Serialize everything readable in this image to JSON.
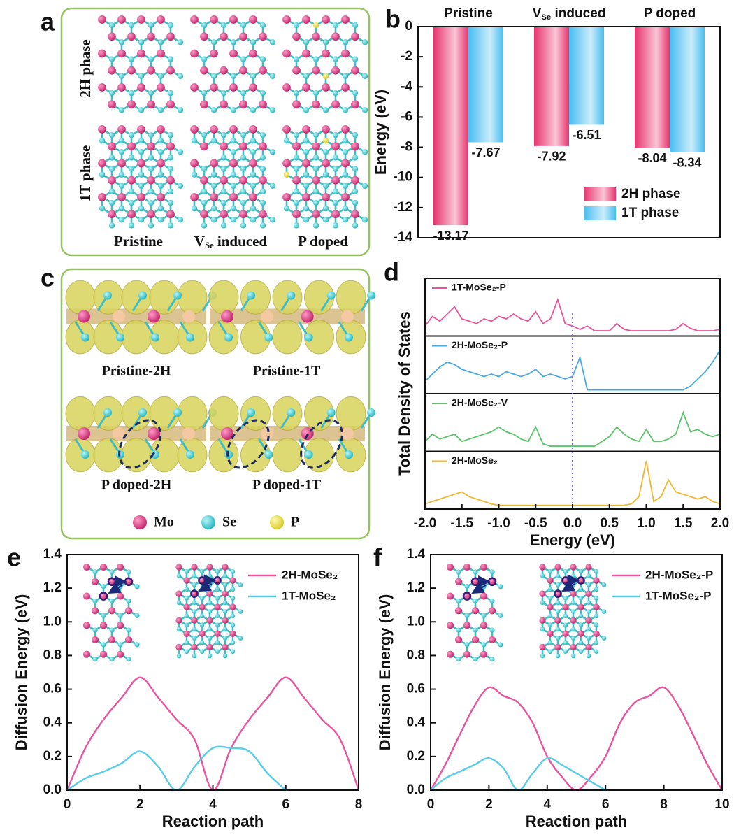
{
  "panels": {
    "a": {
      "label": "a",
      "rows": [
        "2H phase",
        "1T phase"
      ],
      "columns": [
        "Pristine",
        {
          "main": "V",
          "sub": "Se",
          "rest": " induced"
        },
        "P doped"
      ]
    },
    "c": {
      "label": "c",
      "captions": [
        "Pristine-2H",
        "Pristine-1T",
        "P doped-2H",
        "P doped-1T"
      ],
      "legend": [
        "Mo",
        "Se",
        "P"
      ]
    }
  },
  "chart_data": [
    {
      "panel": "b",
      "type": "bar",
      "ylabel": "Energy (eV)",
      "categories": [
        "Pristine",
        {
          "main": "V",
          "sub": "Se",
          "rest": " induced"
        },
        "P doped"
      ],
      "series": [
        {
          "name": "2H phase",
          "color": "#e8336e",
          "values": [
            -13.17,
            -7.92,
            -8.04
          ]
        },
        {
          "name": "1T phase",
          "color": "#47bdf0",
          "values": [
            -7.67,
            -6.51,
            -8.34
          ]
        }
      ],
      "ylim": [
        -14,
        0
      ],
      "yticks": [
        0,
        -2,
        -4,
        -6,
        -8,
        -10,
        -12,
        -14
      ],
      "legend": "lower right"
    },
    {
      "panel": "d",
      "type": "line",
      "layout": "stacked",
      "ylabel": "Total Density of States",
      "xlabel": "Energy (eV)",
      "x": [
        -2,
        -1.9,
        -1.8,
        -1.7,
        -1.6,
        -1.5,
        -1.4,
        -1.3,
        -1.2,
        -1.1,
        -1,
        -0.9,
        -0.8,
        -0.7,
        -0.6,
        -0.5,
        -0.4,
        -0.3,
        -0.2,
        -0.1,
        0,
        0.1,
        0.2,
        0.3,
        0.4,
        0.5,
        0.6,
        0.7,
        0.8,
        0.9,
        1,
        1.1,
        1.2,
        1.3,
        1.4,
        1.5,
        1.6,
        1.7,
        1.8,
        1.9,
        2
      ],
      "xlim": [
        -2,
        2
      ],
      "xticks": [
        {
          "value": -2,
          "label": "-2.0"
        },
        -1.5,
        {
          "value": -1,
          "label": "-1.0"
        },
        -0.5,
        {
          "value": 0,
          "label": "0.0"
        },
        0.5,
        {
          "value": 1,
          "label": "1.0"
        },
        1.5,
        {
          "value": 2,
          "label": "2.0"
        }
      ],
      "ylim": [
        0,
        1
      ],
      "reference_x": 0,
      "series": [
        {
          "name": "1T-MoSe₂-P",
          "color": "#e8549c",
          "values": [
            0.15,
            0.35,
            0.25,
            0.4,
            0.55,
            0.3,
            0.25,
            0.2,
            0.3,
            0.25,
            0.35,
            0.3,
            0.4,
            0.3,
            0.25,
            0.45,
            0.2,
            0.3,
            0.7,
            0.2,
            0.15,
            0.08,
            0.15,
            0.05,
            0.05,
            0.05,
            0.2,
            0.08,
            0.05,
            0.05,
            0.05,
            0.05,
            0.05,
            0.05,
            0.08,
            0.2,
            0.1,
            0.05,
            0.05,
            0.05,
            0.08
          ]
        },
        {
          "name": "2H-MoSe₂-P",
          "color": "#4aa8e0",
          "values": [
            0.2,
            0.35,
            0.5,
            0.6,
            0.55,
            0.45,
            0.4,
            0.35,
            0.3,
            0.35,
            0.3,
            0.4,
            0.35,
            0.3,
            0.35,
            0.45,
            0.3,
            0.35,
            0.3,
            0.25,
            0.3,
            0.7,
            0.02,
            0.02,
            0.02,
            0.02,
            0.02,
            0.02,
            0.02,
            0.02,
            0.02,
            0.02,
            0.02,
            0.02,
            0.02,
            0.02,
            0.1,
            0.25,
            0.4,
            0.6,
            0.85
          ]
        },
        {
          "name": "2H-MoSe₂-V",
          "color": "#5cc46a",
          "values": [
            0.15,
            0.3,
            0.2,
            0.25,
            0.3,
            0.15,
            0.2,
            0.25,
            0.3,
            0.35,
            0.45,
            0.35,
            0.3,
            0.2,
            0.15,
            0.45,
            0.1,
            0.05,
            0.05,
            0.05,
            0.05,
            0.05,
            0.05,
            0.05,
            0.15,
            0.25,
            0.45,
            0.3,
            0.2,
            0.15,
            0.4,
            0.15,
            0.15,
            0.2,
            0.3,
            0.75,
            0.35,
            0.4,
            0.3,
            0.25,
            0.3
          ]
        },
        {
          "name": "2H-MoSe₂",
          "color": "#f2b632",
          "values": [
            0.05,
            0.1,
            0.15,
            0.2,
            0.25,
            0.3,
            0.2,
            0.15,
            0.1,
            0.05,
            0.02,
            0.02,
            0.02,
            0.02,
            0.02,
            0.02,
            0.02,
            0.02,
            0.02,
            0.02,
            0.02,
            0.02,
            0.02,
            0.02,
            0.02,
            0.02,
            0.02,
            0.02,
            0.05,
            0.2,
            0.95,
            0.1,
            0.2,
            0.55,
            0.3,
            0.25,
            0.2,
            0.15,
            0.2,
            0.1,
            0.05
          ]
        }
      ]
    },
    {
      "panel": "e",
      "type": "line",
      "xlabel": "Reaction path",
      "ylabel": "Diffusion Energy (eV)",
      "xlim": [
        0,
        8
      ],
      "xticks": [
        0,
        2,
        4,
        6,
        8
      ],
      "ylim": [
        0,
        1.4
      ],
      "yticks": [
        {
          "value": 0,
          "label": "0.0"
        },
        0.2,
        0.4,
        0.6,
        0.8,
        {
          "value": 1,
          "label": "1.0"
        },
        1.2,
        1.4
      ],
      "legend": "upper right",
      "series": [
        {
          "name": "2H-MoSe₂",
          "color": "#e9559f",
          "x": [
            0,
            0.5,
            1,
            1.5,
            2,
            2.5,
            3,
            3.5,
            4,
            4.5,
            5,
            5.5,
            6,
            6.5,
            7,
            7.5,
            8
          ],
          "values": [
            0,
            0.25,
            0.42,
            0.55,
            0.67,
            0.55,
            0.42,
            0.3,
            0,
            0.25,
            0.42,
            0.55,
            0.67,
            0.55,
            0.42,
            0.3,
            0
          ]
        },
        {
          "name": "1T-MoSe₂",
          "color": "#58cce8",
          "x": [
            0,
            0.5,
            1,
            1.5,
            2,
            2.5,
            3,
            3.5,
            4,
            4.5,
            5,
            5.5,
            6
          ],
          "values": [
            0,
            0.07,
            0.11,
            0.16,
            0.23,
            0.14,
            0,
            0.14,
            0.25,
            0.25,
            0.23,
            0.1,
            0
          ]
        }
      ]
    },
    {
      "panel": "f",
      "type": "line",
      "xlabel": "Reaction path",
      "ylabel": "Diffusion Energy (eV)",
      "xlim": [
        0,
        10
      ],
      "xticks": [
        0,
        2,
        4,
        6,
        8,
        10
      ],
      "ylim": [
        0,
        1.4
      ],
      "yticks": [
        {
          "value": 0,
          "label": "0.0"
        },
        0.2,
        0.4,
        0.6,
        0.8,
        {
          "value": 1,
          "label": "1.0"
        },
        1.2,
        1.4
      ],
      "legend": "upper right",
      "series": [
        {
          "name": "2H-MoSe₂-P",
          "color": "#e9559f",
          "x": [
            0,
            0.5,
            1,
            1.5,
            2,
            2.5,
            3,
            3.5,
            4,
            4.5,
            5,
            5.5,
            6,
            6.5,
            7,
            7.5,
            8,
            8.5,
            9,
            9.5,
            10
          ],
          "values": [
            0,
            0.15,
            0.33,
            0.5,
            0.61,
            0.56,
            0.52,
            0.4,
            0.2,
            0.08,
            0,
            0.08,
            0.2,
            0.4,
            0.52,
            0.56,
            0.61,
            0.5,
            0.33,
            0.15,
            0
          ]
        },
        {
          "name": "1T-MoSe₂-P",
          "color": "#58cce8",
          "x": [
            0,
            0.5,
            1,
            1.5,
            2,
            2.5,
            3,
            3.5,
            4,
            4.5,
            5,
            5.5,
            6
          ],
          "values": [
            0,
            0.07,
            0.11,
            0.15,
            0.19,
            0.13,
            0,
            0.1,
            0.19,
            0.15,
            0.1,
            0.05,
            0
          ]
        }
      ]
    }
  ]
}
